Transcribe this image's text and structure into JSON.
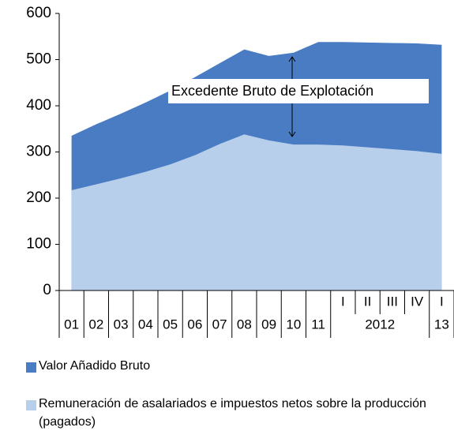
{
  "chart_data": {
    "type": "area",
    "categories": [
      "01",
      "02",
      "03",
      "04",
      "05",
      "06",
      "07",
      "08",
      "09",
      "10",
      "11",
      "I",
      "II",
      "III",
      "IV",
      "I"
    ],
    "group_labels": [
      "2012",
      "13"
    ],
    "series": [
      {
        "name": "Valor Añadido Bruto",
        "color": "#4a7cc4",
        "values": [
          335,
          360,
          383,
          407,
          433,
          462,
          492,
          522,
          508,
          515,
          538,
          538,
          537,
          536,
          535,
          532
        ]
      },
      {
        "name": "Remuneración de asalariados  e impuestos netos sobre la producción (pagados)",
        "color": "#b8cfeb",
        "values": [
          217,
          230,
          243,
          257,
          273,
          293,
          317,
          338,
          325,
          316,
          316,
          314,
          310,
          306,
          302,
          296
        ]
      }
    ],
    "annotation": "Excedente Bruto de Explotación",
    "ylim": [
      0,
      600
    ],
    "yticks": [
      0,
      100,
      200,
      300,
      400,
      500,
      600
    ]
  }
}
